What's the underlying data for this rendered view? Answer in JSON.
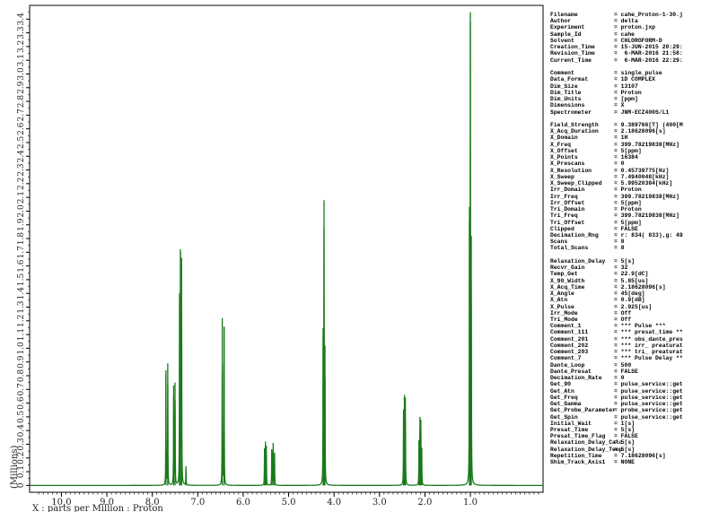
{
  "chart_data": {
    "type": "line",
    "xlabel": "X : parts per Million : Proton",
    "ylabel": "(Millions)",
    "xlim": [
      10.7,
      -0.6
    ],
    "ylim": [
      -0.05,
      3.5
    ],
    "x_ticks": [
      "10.0",
      "9.0",
      "8.0",
      "7.0",
      "6.0",
      "5.0",
      "4.0",
      "3.0",
      "2.0",
      "1.0"
    ],
    "x_tick_values": [
      10.0,
      9.0,
      8.0,
      7.0,
      6.0,
      5.0,
      4.0,
      3.0,
      2.0,
      1.0
    ],
    "y_ticks": [
      "0",
      "0.1",
      "0.2",
      "0.3",
      "0.4",
      "0.5",
      "0.6",
      "0.7",
      "0.8",
      "0.9",
      "1.0",
      "1.1",
      "1.2",
      "1.3",
      "1.4",
      "1.5",
      "1.6",
      "1.7",
      "1.8",
      "1.9",
      "2.0",
      "2.1",
      "2.2",
      "2.3",
      "2.4",
      "2.5",
      "2.6",
      "2.7",
      "2.8",
      "2.9",
      "3.0",
      "3.1",
      "3.2",
      "3.3",
      "3.4"
    ],
    "line_color": "#1a7a1a",
    "peaks": [
      {
        "x": 7.7,
        "y": 0.84
      },
      {
        "x": 7.66,
        "y": 0.89
      },
      {
        "x": 7.53,
        "y": 0.73
      },
      {
        "x": 7.5,
        "y": 0.75
      },
      {
        "x": 7.4,
        "y": 1.37
      },
      {
        "x": 7.38,
        "y": 1.7
      },
      {
        "x": 7.355,
        "y": 1.66
      },
      {
        "x": 7.26,
        "y": 0.14
      },
      {
        "x": 6.46,
        "y": 1.22
      },
      {
        "x": 6.42,
        "y": 1.15
      },
      {
        "x": 5.53,
        "y": 0.26
      },
      {
        "x": 5.51,
        "y": 0.32
      },
      {
        "x": 5.49,
        "y": 0.29
      },
      {
        "x": 5.37,
        "y": 0.26
      },
      {
        "x": 5.34,
        "y": 0.31
      },
      {
        "x": 5.31,
        "y": 0.24
      },
      {
        "x": 4.24,
        "y": 1.08
      },
      {
        "x": 4.22,
        "y": 2.08
      },
      {
        "x": 4.2,
        "y": 1.02
      },
      {
        "x": 2.47,
        "y": 0.53
      },
      {
        "x": 2.45,
        "y": 0.66
      },
      {
        "x": 2.43,
        "y": 0.64
      },
      {
        "x": 2.13,
        "y": 0.33
      },
      {
        "x": 2.11,
        "y": 0.5
      },
      {
        "x": 2.09,
        "y": 0.48
      },
      {
        "x": 2.07,
        "y": 0.26
      },
      {
        "x": 1.02,
        "y": 1.93
      },
      {
        "x": 1.0,
        "y": 3.45
      },
      {
        "x": 0.98,
        "y": 1.82
      }
    ],
    "grid": false,
    "legend": "none"
  },
  "parameters": [
    {
      "key": "Filename",
      "value": "= cahe_Proton-1-30.j"
    },
    {
      "key": "Author",
      "value": "= delta"
    },
    {
      "key": "Experiment",
      "value": "= proton.jxp"
    },
    {
      "key": "Sample_Id",
      "value": "= cahe"
    },
    {
      "key": "Solvent",
      "value": "= CHLOROFORM-D"
    },
    {
      "key": "Creation_Time",
      "value": "= 15-JUN-2015 20:29:"
    },
    {
      "key": "Revision_Time",
      "value": "=  6-MAR-2016 21:58:"
    },
    {
      "key": "Current_Time",
      "value": "=  6-MAR-2016 22:29:"
    },
    {
      "key": "",
      "value": ""
    },
    {
      "key": "Comment",
      "value": "= single_pulse"
    },
    {
      "key": "Data_Format",
      "value": "= 1D COMPLEX"
    },
    {
      "key": "Dim_Size",
      "value": "= 13107"
    },
    {
      "key": "Dim_Title",
      "value": "= Proton"
    },
    {
      "key": "Dim_Units",
      "value": "= [ppm]"
    },
    {
      "key": "Dimensions",
      "value": "= X"
    },
    {
      "key": "Spectrometer",
      "value": "= JNM-ECZ400S/L1"
    },
    {
      "key": "",
      "value": ""
    },
    {
      "key": "Field_Strength",
      "value": "= 9.389766[T] (400[M"
    },
    {
      "key": "X_Acq_Duration",
      "value": "= 2.18628096[s]"
    },
    {
      "key": "X_Domain",
      "value": "= 1H"
    },
    {
      "key": "X_Freq",
      "value": "= 399.78219838[MHz]"
    },
    {
      "key": "X_Offset",
      "value": "= 5[ppm]"
    },
    {
      "key": "X_Points",
      "value": "= 16384"
    },
    {
      "key": "X_Prescans",
      "value": "= 0"
    },
    {
      "key": "X_Resolution",
      "value": "= 0.45739775[Hz]"
    },
    {
      "key": "X_Sweep",
      "value": "= 7.4940048[kHz]"
    },
    {
      "key": "X_Sweep_Clipped",
      "value": "= 5.99520384[kHz]"
    },
    {
      "key": "Irr_Domain",
      "value": "= Proton"
    },
    {
      "key": "Irr_Freq",
      "value": "= 399.78219838[MHz]"
    },
    {
      "key": "Irr_Offset",
      "value": "= 5[ppm]"
    },
    {
      "key": "Tri_Domain",
      "value": "= Proton"
    },
    {
      "key": "Tri_Freq",
      "value": "= 399.78219838[MHz]"
    },
    {
      "key": "Tri_Offset",
      "value": "= 5[ppm]"
    },
    {
      "key": "Clipped",
      "value": "= FALSE"
    },
    {
      "key": "Decimation_Rng",
      "value": "= r: 834( 833),g: 49"
    },
    {
      "key": "Scans",
      "value": "= 8"
    },
    {
      "key": "Total_Scans",
      "value": "= 8"
    },
    {
      "key": "",
      "value": ""
    },
    {
      "key": "Relaxation_Delay",
      "value": "= 5[s]"
    },
    {
      "key": "Recvr_Gain",
      "value": "= 32"
    },
    {
      "key": "Temp_Get",
      "value": "= 22.9[dC]"
    },
    {
      "key": "X_90_Width",
      "value": "= 5.85[us]"
    },
    {
      "key": "X_Acq_Time",
      "value": "= 2.18628096[s]"
    },
    {
      "key": "X_Angle",
      "value": "= 45[deg]"
    },
    {
      "key": "X_Atn",
      "value": "= 0.9[dB]"
    },
    {
      "key": "X_Pulse",
      "value": "= 2.925[us]"
    },
    {
      "key": "Irr_Mode",
      "value": "= Off"
    },
    {
      "key": "Tri_Mode",
      "value": "= Off"
    },
    {
      "key": "Comment_1",
      "value": "= *** Pulse ***"
    },
    {
      "key": "Comment_111",
      "value": "= *** presat_time **"
    },
    {
      "key": "Comment_201",
      "value": "= *** obs_dante_pres"
    },
    {
      "key": "Comment_202",
      "value": "= *** irr_ preaturat"
    },
    {
      "key": "Comment_203",
      "value": "= *** tri_ preaturat"
    },
    {
      "key": "Comment_7",
      "value": "= *** Pulse Delay **"
    },
    {
      "key": "Dante_Loop",
      "value": "= 500"
    },
    {
      "key": "Dante_Presat",
      "value": "= FALSE"
    },
    {
      "key": "Decimation_Rate",
      "value": "= 0"
    },
    {
      "key": "Get_90",
      "value": "= pulse_service::get"
    },
    {
      "key": "Get_Atn",
      "value": "= pulse_service::get"
    },
    {
      "key": "Get_Freq",
      "value": "= pulse_service::get"
    },
    {
      "key": "Get_Gamma",
      "value": "= pulse_service::get"
    },
    {
      "key": "Get_Probe_Parameter",
      "value": "= probe_service::get"
    },
    {
      "key": "Get_Spin",
      "value": "= pulse_service::get"
    },
    {
      "key": "Initial_Wait",
      "value": "= 1[s]"
    },
    {
      "key": "Presat_Time",
      "value": "= 5[s]"
    },
    {
      "key": "Presat_Time_Flag",
      "value": "= FALSE"
    },
    {
      "key": "Relaxation_Delay_Calc",
      "value": "= 5[s]"
    },
    {
      "key": "Relaxation_Delay_Temp",
      "value": "= 5[s]"
    },
    {
      "key": "Repetition_Time",
      "value": "= 7.18628096[s]"
    },
    {
      "key": "Shim_Track_Axis1",
      "value": "= NONE"
    }
  ]
}
